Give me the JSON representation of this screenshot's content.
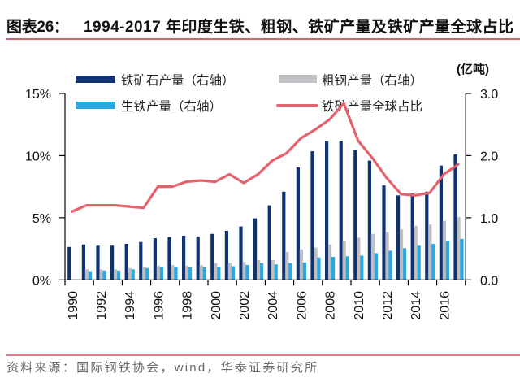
{
  "header": {
    "figure_label": "图表26：",
    "title": "1994-2017 年印度生铁、粗钢、铁矿产量及铁矿产量全球占比"
  },
  "source": "资料来源：国际钢铁协会，wind，华泰证券研究所",
  "colors": {
    "rule": "#b8323b",
    "axis": "#000000"
  },
  "chart_data": {
    "type": "bar",
    "title": "1994-2017 年印度生铁、粗钢、铁矿产量及铁矿产量全球占比",
    "xlabel": "",
    "grid": false,
    "categories": [
      "1990",
      "1991",
      "1992",
      "1993",
      "1994",
      "1995",
      "1996",
      "1997",
      "1998",
      "1999",
      "2000",
      "2001",
      "2002",
      "2003",
      "2004",
      "2005",
      "2006",
      "2007",
      "2008",
      "2009",
      "2010",
      "2011",
      "2012",
      "2013",
      "2014",
      "2015",
      "2016",
      "2017"
    ],
    "x_tick_labels": [
      "1990",
      "1992",
      "1994",
      "1996",
      "1998",
      "2000",
      "2002",
      "2004",
      "2006",
      "2008",
      "2010",
      "2012",
      "2014",
      "2016"
    ],
    "series": [
      {
        "id": "iron-ore",
        "name": "铁矿石产量（右轴）",
        "mark": "bar",
        "axis": "right",
        "unit": "亿吨",
        "color": "#0e3370",
        "values": [
          0.53,
          0.57,
          0.55,
          0.55,
          0.58,
          0.61,
          0.67,
          0.69,
          0.71,
          0.7,
          0.74,
          0.79,
          0.86,
          0.99,
          1.2,
          1.42,
          1.81,
          2.07,
          2.23,
          2.23,
          2.09,
          1.92,
          1.52,
          1.36,
          1.39,
          1.42,
          1.84,
          2.02
        ]
      },
      {
        "id": "crude-steel",
        "name": "粗钢产量（右轴）",
        "mark": "bar",
        "axis": "right",
        "unit": "亿吨",
        "color": "#bfbfc4",
        "values": [
          null,
          0.17,
          0.17,
          0.17,
          0.19,
          0.21,
          0.23,
          0.24,
          0.23,
          0.24,
          0.27,
          0.27,
          0.29,
          0.32,
          0.32,
          0.45,
          0.49,
          0.52,
          0.57,
          0.63,
          0.68,
          0.74,
          0.77,
          0.81,
          0.87,
          0.89,
          0.95,
          1.01
        ]
      },
      {
        "id": "pig-iron",
        "name": "生铁产量（右轴）",
        "mark": "bar",
        "axis": "right",
        "unit": "亿吨",
        "color": "#2aa9e0",
        "values": [
          null,
          0.14,
          0.15,
          0.15,
          0.17,
          0.19,
          0.21,
          0.21,
          0.2,
          0.2,
          0.21,
          0.22,
          0.24,
          0.27,
          0.25,
          0.27,
          0.28,
          0.36,
          0.37,
          0.38,
          0.39,
          0.43,
          0.47,
          0.51,
          0.55,
          0.58,
          0.63,
          0.66
        ]
      },
      {
        "id": "global-share",
        "name": "铁矿产量全球占比",
        "mark": "line",
        "axis": "left",
        "unit": "%",
        "color": "#e5616c",
        "values": [
          5.5,
          6.0,
          6.0,
          6.0,
          5.9,
          5.8,
          7.5,
          7.5,
          7.9,
          8.0,
          7.9,
          8.5,
          7.8,
          8.5,
          9.6,
          10.2,
          11.4,
          12.1,
          12.9,
          14.2,
          11.2,
          9.8,
          8.2,
          6.9,
          6.8,
          7.0,
          8.5,
          9.3
        ]
      }
    ],
    "left_axis": {
      "label": "",
      "ylim": [
        0,
        15
      ],
      "ticks": [
        0,
        5,
        10,
        15
      ],
      "tick_labels": [
        "0%",
        "5%",
        "10%",
        "15%"
      ]
    },
    "right_axis": {
      "unit_label": "(亿吨)",
      "ylim": [
        0,
        3
      ],
      "ticks": [
        0,
        1,
        2,
        3
      ],
      "tick_labels": [
        "0.0",
        "1.0",
        "2.0",
        "3.0"
      ]
    },
    "legend": {
      "placement": "top",
      "columns": 2
    }
  }
}
